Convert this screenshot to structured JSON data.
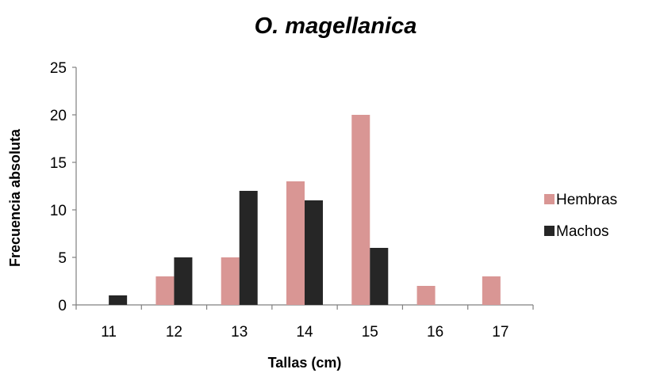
{
  "chart_data": {
    "type": "bar",
    "title": "O. magellanica",
    "xlabel": "Tallas (cm)",
    "ylabel": "Frecuencia absoluta",
    "categories": [
      "11",
      "12",
      "13",
      "14",
      "15",
      "16",
      "17"
    ],
    "series": [
      {
        "name": "Hembras",
        "color": "#d99694",
        "values": [
          0,
          3,
          5,
          13,
          20,
          2,
          3
        ]
      },
      {
        "name": "Machos",
        "color": "#262626",
        "values": [
          1,
          5,
          12,
          11,
          6,
          0,
          0
        ]
      }
    ],
    "ylim": [
      0,
      25
    ],
    "yticks": [
      "0",
      "5",
      "10",
      "15",
      "20",
      "25"
    ],
    "grid": false,
    "legend_position": "right"
  }
}
